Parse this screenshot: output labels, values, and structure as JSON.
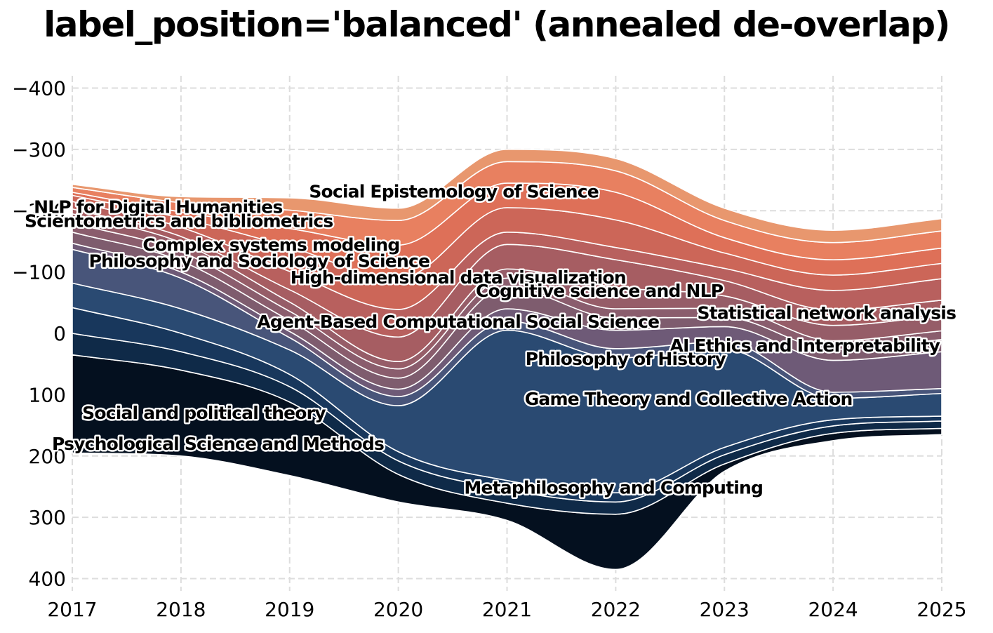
{
  "chart_data": {
    "type": "area",
    "subtype": "streamgraph",
    "title": "label_position='balanced' (annealed de-overlap)",
    "xlabel": "",
    "ylabel": "",
    "x": [
      2017,
      2018,
      2019,
      2020,
      2021,
      2022,
      2023,
      2024,
      2025
    ],
    "xlim": [
      2017,
      2025
    ],
    "ylim": [
      -420,
      420
    ],
    "yticks": [
      -400,
      -300,
      -200,
      -100,
      0,
      100,
      200,
      300,
      400
    ],
    "xtick_labels": [
      "2017",
      "2018",
      "2019",
      "2020",
      "2021",
      "2022",
      "2023",
      "2024",
      "2025"
    ],
    "ytick_labels": [
      "400",
      "300",
      "200",
      "100",
      "0",
      "−100",
      "−200",
      "−300",
      "−400"
    ],
    "grid": true,
    "baseline": [
      -195,
      -200,
      -232,
      -275,
      -305,
      -385,
      -225,
      -175,
      -165
    ],
    "series": [
      {
        "name": "Psychological Science and Methods",
        "color": "#04101f",
        "values": [
          160,
          140,
          120,
          45,
          28,
          90,
          12,
          12,
          10
        ]
      },
      {
        "name": "Social and political theory",
        "color": "#0f2a48",
        "values": [
          35,
          30,
          25,
          22,
          22,
          20,
          15,
          12,
          12
        ]
      },
      {
        "name": "Metaphilosophy and Computing",
        "color": "#18375c",
        "values": [
          42,
          30,
          20,
          15,
          15,
          15,
          12,
          10,
          8
        ]
      },
      {
        "name": "Game Theory and Collective Action",
        "color": "#2a4a72",
        "values": [
          40,
          40,
          40,
          75,
          245,
          220,
          160,
          35,
          37
        ]
      },
      {
        "name": "Philosophy of History",
        "color": "#48557a",
        "values": [
          55,
          50,
          20,
          15,
          15,
          15,
          12,
          10,
          8
        ]
      },
      {
        "name": "AI Ethics and Interpretability",
        "color": "#6e5a77",
        "values": [
          10,
          10,
          10,
          12,
          20,
          30,
          25,
          52,
          60
        ]
      },
      {
        "name": "Agent-Based Computational Social Science",
        "color": "#7e5c6e",
        "values": [
          18,
          18,
          18,
          18,
          35,
          20,
          15,
          18,
          20
        ]
      },
      {
        "name": "Statistical network analysis",
        "color": "#8a5d6d",
        "values": [
          15,
          15,
          15,
          15,
          15,
          15,
          15,
          14,
          14
        ]
      },
      {
        "name": "Cognitive science and NLP",
        "color": "#965d68",
        "values": [
          15,
          15,
          15,
          12,
          15,
          35,
          20,
          25,
          25
        ]
      },
      {
        "name": "High-dimensional data visualization",
        "color": "#a65d62",
        "values": [
          8,
          10,
          20,
          40,
          40,
          45,
          25,
          25,
          25
        ]
      },
      {
        "name": "Philosophy and Sociology of Science",
        "color": "#b8605e",
        "values": [
          12,
          15,
          30,
          45,
          20,
          20,
          20,
          32,
          35
        ]
      },
      {
        "name": "Complex systems modeling",
        "color": "#cc6658",
        "values": [
          10,
          15,
          40,
          50,
          40,
          45,
          25,
          25,
          25
        ]
      },
      {
        "name": "Scientometrics and bibliometrics",
        "color": "#de7058",
        "values": [
          5,
          10,
          30,
          55,
          40,
          45,
          25,
          25,
          25
        ]
      },
      {
        "name": "Social Epistemology of Science",
        "color": "#e88060",
        "values": [
          8,
          15,
          30,
          40,
          35,
          35,
          28,
          28,
          28
        ]
      },
      {
        "name": "NLP for Digital Humanities",
        "color": "#e8976e",
        "values": [
          5,
          10,
          20,
          20,
          20,
          20,
          20,
          20,
          20
        ]
      }
    ],
    "annotations": [
      {
        "series": "Social Epistemology of Science",
        "x": 2020.51,
        "y": 231
      },
      {
        "series": "NLP for Digital Humanities",
        "x": 2017.79,
        "y": 206
      },
      {
        "series": "Scientometrics and bibliometrics",
        "x": 2017.98,
        "y": 183
      },
      {
        "series": "Complex systems modeling",
        "x": 2018.83,
        "y": 144
      },
      {
        "series": "Philosophy and Sociology of Science",
        "x": 2018.72,
        "y": 118
      },
      {
        "series": "High-dimensional data visualization",
        "x": 2020.55,
        "y": 91
      },
      {
        "series": "Cognitive science and NLP",
        "x": 2021.85,
        "y": 69
      },
      {
        "series": "Statistical network analysis",
        "x": 2023.94,
        "y": 33
      },
      {
        "series": "Agent-Based Computational Social Science",
        "x": 2020.55,
        "y": 19
      },
      {
        "series": "AI Ethics and Interpretability",
        "x": 2023.74,
        "y": -20
      },
      {
        "series": "Philosophy of History",
        "x": 2022.09,
        "y": -42
      },
      {
        "series": "Game Theory and Collective Action",
        "x": 2022.67,
        "y": -107
      },
      {
        "series": "Social and political theory",
        "x": 2018.21,
        "y": -130
      },
      {
        "series": "Psychological Science and Methods",
        "x": 2018.34,
        "y": -180
      },
      {
        "series": "Metaphilosophy and Computing",
        "x": 2021.98,
        "y": -252
      }
    ]
  }
}
